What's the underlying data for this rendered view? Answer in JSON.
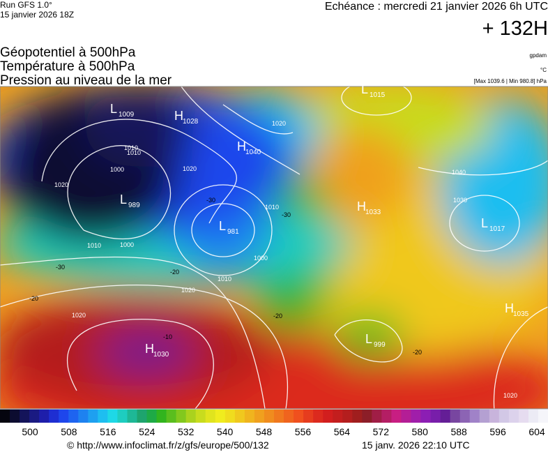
{
  "header": {
    "run": "Run GFS 1.0°",
    "run_date": "15 janvier 2026 18Z",
    "forecast": "Echéance : mercredi 21 janvier 2026 6h UTC",
    "lead": "+ 132H"
  },
  "layers": [
    "Géopotentiel à 500hPa",
    "Température à 500hPa",
    "Pression au niveau de la mer"
  ],
  "units": {
    "geopotential": "gpdam",
    "temperature": "°C",
    "pressure": "[Max 1039.6 | Min 980.8] hPa"
  },
  "pressure_centers": [
    {
      "letter": "L",
      "value": "1009"
    },
    {
      "letter": "H",
      "value": "1028"
    },
    {
      "letter": "L",
      "value": "1015"
    },
    {
      "letter": "H",
      "value": "1040"
    },
    {
      "letter": "L",
      "value": "989"
    },
    {
      "letter": "L",
      "value": "981"
    },
    {
      "letter": "H",
      "value": "1033"
    },
    {
      "letter": "L",
      "value": "1017"
    },
    {
      "letter": "H",
      "value": "1035"
    },
    {
      "letter": "L",
      "value": "999"
    },
    {
      "letter": "H",
      "value": "1030"
    }
  ],
  "contour_labels": [
    "1010",
    "1000",
    "1020",
    "1010",
    "1000",
    "1020",
    "1000",
    "1010",
    "1020",
    "1020",
    "1010",
    "1040",
    "1030",
    "1020",
    "1010",
    "1020"
  ],
  "temperature_labels": [
    "-30",
    "-20",
    "-20",
    "-30",
    "-10",
    "-20",
    "-20",
    "-30"
  ],
  "legend": {
    "ticks": [
      "500",
      "508",
      "516",
      "524",
      "532",
      "540",
      "548",
      "556",
      "564",
      "572",
      "580",
      "588",
      "596",
      "604"
    ],
    "colors": [
      "#05050f",
      "#0c0c30",
      "#14145a",
      "#1a1a82",
      "#1e1eaa",
      "#1e2ed2",
      "#1e46ec",
      "#1e64f0",
      "#1e82f0",
      "#1ea0f0",
      "#1ebef0",
      "#1ed8e6",
      "#1ecdc0",
      "#1eb896",
      "#1ea46e",
      "#1eaa46",
      "#32b41e",
      "#5abe1e",
      "#82c81e",
      "#aad21e",
      "#c8dc1e",
      "#e0e41e",
      "#f0ec1e",
      "#f0dc1e",
      "#f0c81e",
      "#f0b41e",
      "#f0a01e",
      "#f08c1e",
      "#f0781e",
      "#f0641e",
      "#f0501e",
      "#e63c1e",
      "#dc2a1e",
      "#d21e1e",
      "#c31e1e",
      "#b41e1e",
      "#a01e1e",
      "#8c1e28",
      "#a01e46",
      "#b41e64",
      "#c81e82",
      "#b41e96",
      "#a01eaa",
      "#8c1eb4",
      "#781eaa",
      "#641e96",
      "#7846a0",
      "#8c64b4",
      "#a082c8",
      "#b4a0d2",
      "#c8b4dc",
      "#d2c8e6",
      "#dcd2ec",
      "#e6dcf0",
      "#ecebf5",
      "#f5f5fa"
    ]
  },
  "footer": {
    "url": "© http://www.infoclimat.fr/z/gfs/europe/500/132",
    "generated": "15 janv. 2026 22:10 UTC"
  }
}
